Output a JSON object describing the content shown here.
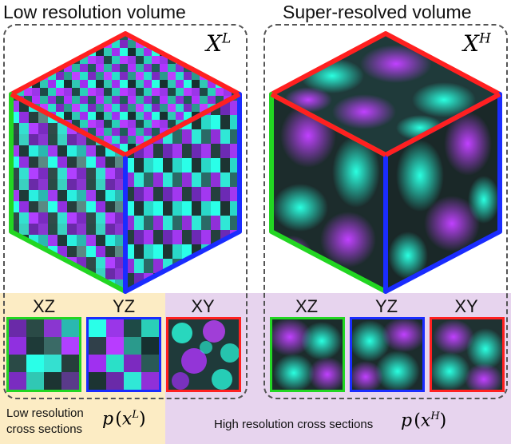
{
  "colors": {
    "red": "#ff2020",
    "green": "#22d622",
    "blue": "#1a2cff",
    "magenta": "#b034ff",
    "cyan": "#2affe0",
    "dark": "#1c2a2a",
    "yellow_bg": "#fcecc4",
    "purple_bg": "#e7d4ee"
  },
  "left_panel": {
    "title": "Low resolution volume",
    "volume_symbol": "X",
    "volume_superscript": "L",
    "sections": [
      {
        "label": "XZ",
        "border": "green"
      },
      {
        "label": "YZ",
        "border": "blue"
      },
      {
        "label": "XY",
        "border": "red"
      }
    ]
  },
  "right_panel": {
    "title": "Super-resolved volume",
    "volume_symbol": "X",
    "volume_superscript": "H",
    "sections": [
      {
        "label": "XZ",
        "border": "green"
      },
      {
        "label": "YZ",
        "border": "blue"
      },
      {
        "label": "XY",
        "border": "red"
      }
    ]
  },
  "captions": {
    "low_line1": "Low resolution",
    "low_line2": "cross sections",
    "low_formula_p": "p",
    "low_formula_x": "x",
    "low_formula_sup": "L",
    "high_text": "High resolution cross sections",
    "high_formula_p": "p",
    "high_formula_x": "x",
    "high_formula_sup": "H"
  }
}
